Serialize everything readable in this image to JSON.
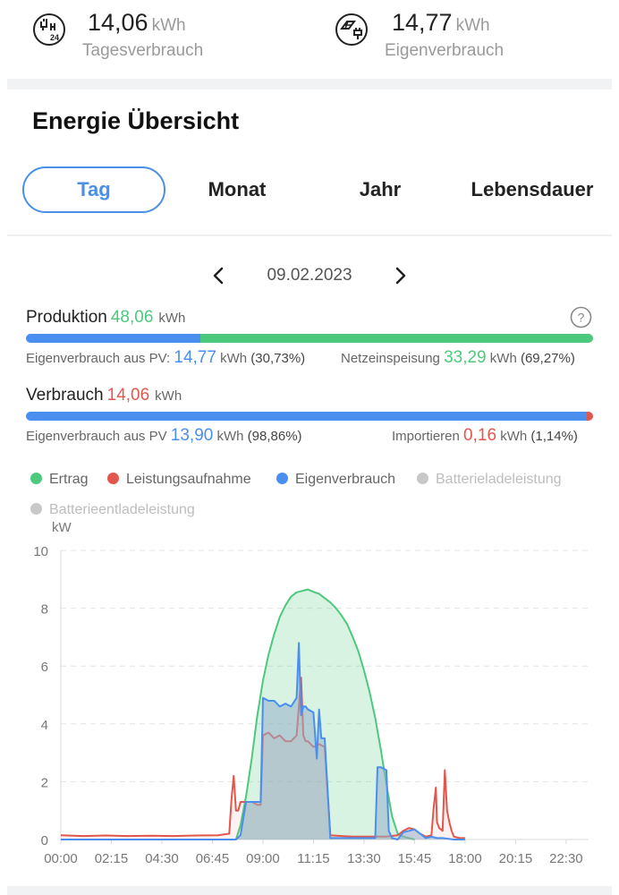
{
  "summary": {
    "daily": {
      "value": "14,06",
      "unit": "kWh",
      "label": "Tagesverbrauch",
      "icon": "plug-24h-icon"
    },
    "self": {
      "value": "14,77",
      "unit": "kWh",
      "label": "Eigenverbrauch",
      "icon": "solar-plug-icon"
    }
  },
  "section_title": "Energie Übersicht",
  "tabs": [
    {
      "label": "Tag",
      "active": true
    },
    {
      "label": "Monat",
      "active": false
    },
    {
      "label": "Jahr",
      "active": false
    },
    {
      "label": "Lebensdauer",
      "active": false
    }
  ],
  "date": "09.02.2023",
  "production": {
    "label": "Produktion",
    "value": "48,06",
    "unit": "kWh",
    "self_label": "Eigenverbrauch aus PV:",
    "self_value": "14,77",
    "self_unit": "kWh",
    "self_pct": "(30,73%)",
    "feed_label": "Netzeinspeisung",
    "feed_value": "33,29",
    "feed_unit": "kWh",
    "feed_pct": "(69,27%)",
    "self_fraction": 0.3073
  },
  "consumption": {
    "label": "Verbrauch",
    "value": "14,06",
    "unit": "kWh",
    "self_label": "Eigenverbrauch aus PV",
    "self_value": "13,90",
    "self_unit": "kWh",
    "self_pct": "(98,86%)",
    "import_label": "Importieren",
    "import_value": "0,16",
    "import_unit": "kWh",
    "import_pct": "(1,14%)",
    "self_fraction": 0.9886
  },
  "colors": {
    "green": "#4cc97c",
    "red": "#e2574c",
    "blue": "#4a8ef0",
    "muted": "#c8c8c8",
    "accent": "#4a90e8"
  },
  "legend": [
    {
      "label": "Ertrag",
      "color": "#4cc97c",
      "muted": false
    },
    {
      "label": "Leistungsaufnahme",
      "color": "#e2574c",
      "muted": false
    },
    {
      "label": "Eigenverbrauch",
      "color": "#4a8ef0",
      "muted": false
    },
    {
      "label": "Batterieladeleistung",
      "color": "#c8c8c8",
      "muted": true
    },
    {
      "label": "Batterieentladeleistung",
      "color": "#c8c8c8",
      "muted": true
    }
  ],
  "chart_data": {
    "type": "area",
    "ylabel": "kW",
    "ylim": [
      0,
      10
    ],
    "xlim": [
      0,
      23.5
    ],
    "yticks": [
      "0",
      "2",
      "4",
      "6",
      "8",
      "10"
    ],
    "xticks": [
      "00:00",
      "02:15",
      "04:30",
      "06:45",
      "09:00",
      "11:15",
      "13:30",
      "15:45",
      "18:00",
      "20:15",
      "22:30"
    ],
    "grid": true,
    "series": [
      {
        "name": "Ertrag",
        "color": "#4cc97c",
        "x": [
          7.8,
          8.0,
          8.25,
          8.5,
          8.75,
          9.0,
          9.25,
          9.5,
          9.75,
          10.0,
          10.25,
          10.5,
          10.75,
          11.0,
          11.15,
          11.3,
          11.5,
          11.75,
          12.0,
          12.25,
          12.5,
          12.75,
          13.0,
          13.25,
          13.5,
          13.75,
          14.0,
          14.25,
          14.5,
          14.75,
          15.0,
          15.25,
          15.5,
          15.75
        ],
        "y": [
          0.0,
          0.5,
          1.5,
          2.8,
          4.3,
          5.5,
          6.4,
          7.1,
          7.7,
          8.1,
          8.4,
          8.55,
          8.6,
          8.65,
          8.6,
          8.55,
          8.5,
          8.35,
          8.2,
          8.0,
          7.75,
          7.45,
          7.0,
          6.5,
          5.85,
          5.1,
          4.2,
          3.1,
          1.9,
          0.8,
          0.2,
          0.1,
          0.05,
          0.0
        ]
      },
      {
        "name": "Leistungsaufnahme",
        "color": "#e2574c",
        "x": [
          0.0,
          1.0,
          2.0,
          3.0,
          4.0,
          5.0,
          6.0,
          7.0,
          7.5,
          7.6,
          7.7,
          7.8,
          7.9,
          8.0,
          8.25,
          8.5,
          8.75,
          8.9,
          9.0,
          9.25,
          9.5,
          9.75,
          10.0,
          10.25,
          10.5,
          10.6,
          10.7,
          10.8,
          10.9,
          11.0,
          11.25,
          11.5,
          11.75,
          12.0,
          12.5,
          13.0,
          13.5,
          14.0,
          14.5,
          15.0,
          15.25,
          15.5,
          15.75,
          16.0,
          16.25,
          16.5,
          16.6,
          16.7,
          16.75,
          16.85,
          17.0,
          17.1,
          17.2,
          17.3,
          17.4,
          17.5,
          17.75,
          18.0
        ],
        "y": [
          0.15,
          0.12,
          0.14,
          0.12,
          0.13,
          0.12,
          0.14,
          0.15,
          0.2,
          1.4,
          2.2,
          1.0,
          1.0,
          1.3,
          1.3,
          1.3,
          1.2,
          1.2,
          3.6,
          3.7,
          3.5,
          3.6,
          3.4,
          3.4,
          3.6,
          4.6,
          5.6,
          3.6,
          3.4,
          3.4,
          3.2,
          3.3,
          3.2,
          0.15,
          0.12,
          0.1,
          0.1,
          0.1,
          0.1,
          0.15,
          0.3,
          0.4,
          0.35,
          0.2,
          0.1,
          0.15,
          1.1,
          1.8,
          0.6,
          0.4,
          0.3,
          2.4,
          1.0,
          0.6,
          0.3,
          0.1,
          0.05,
          0.05
        ]
      },
      {
        "name": "Eigenverbrauch",
        "color": "#4a8ef0",
        "x": [
          0.0,
          7.5,
          7.8,
          8.0,
          8.25,
          8.5,
          8.75,
          8.9,
          9.0,
          9.25,
          9.5,
          9.75,
          10.0,
          10.25,
          10.5,
          10.6,
          10.7,
          10.8,
          10.9,
          11.0,
          11.25,
          11.4,
          11.5,
          11.6,
          11.75,
          12.0,
          12.25,
          12.5,
          13.0,
          13.5,
          14.0,
          14.1,
          14.25,
          14.5,
          14.6,
          14.75,
          15.0,
          15.25,
          15.5,
          15.75,
          16.0,
          16.25,
          16.5,
          16.75,
          17.0,
          17.5,
          18.0
        ],
        "y": [
          0.0,
          0.0,
          0.0,
          0.15,
          1.3,
          1.3,
          1.3,
          1.3,
          4.9,
          4.8,
          4.8,
          4.6,
          4.7,
          4.6,
          4.9,
          6.8,
          4.3,
          4.6,
          4.6,
          4.5,
          4.4,
          2.8,
          4.5,
          3.5,
          3.5,
          0.05,
          0.05,
          0.05,
          0.05,
          0.05,
          0.05,
          2.5,
          2.5,
          2.4,
          0.3,
          0.05,
          0.0,
          0.25,
          0.3,
          0.35,
          0.2,
          0.05,
          0.1,
          0.05,
          0.05,
          0.0,
          0.0
        ]
      }
    ]
  }
}
